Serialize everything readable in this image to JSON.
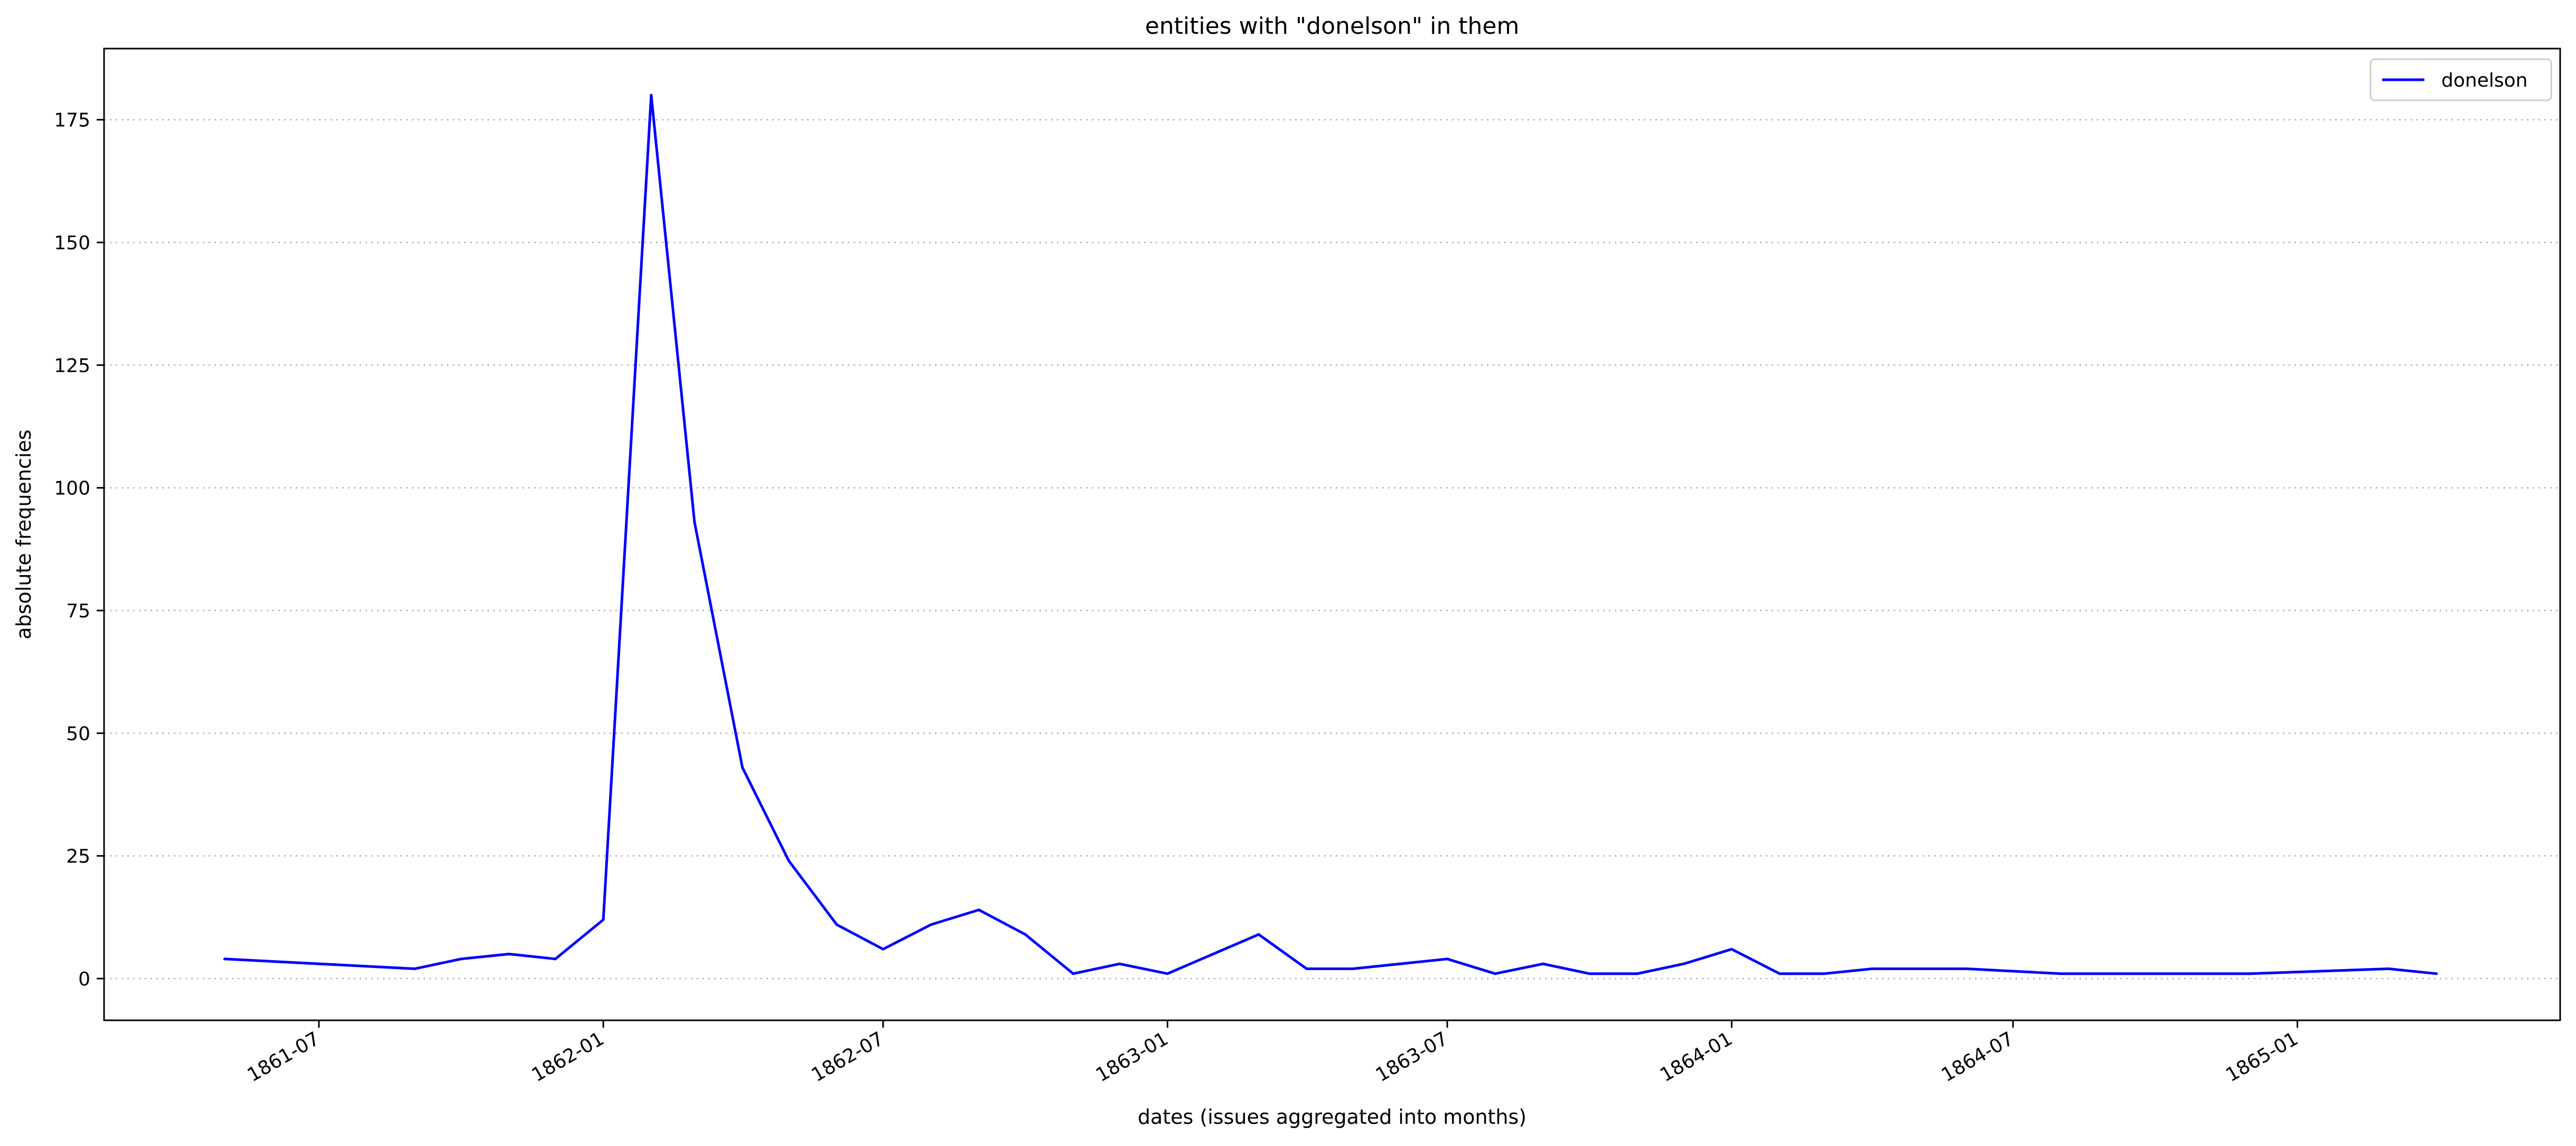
{
  "chart_data": {
    "type": "line",
    "title": "entities with \"donelson\" in them",
    "xlabel": "dates (issues aggregated into months)",
    "ylabel": "absolute frequencies",
    "x_type": "date",
    "xlim": [
      "1861-02-12",
      "1865-06-20"
    ],
    "ylim": [
      -8.5,
      189.5
    ],
    "grid": {
      "axis": "y",
      "style": "dotted"
    },
    "legend": {
      "position": "top-right"
    },
    "x_ticks": [
      "1861-07",
      "1862-01",
      "1862-07",
      "1863-01",
      "1863-07",
      "1864-01",
      "1864-07",
      "1865-01"
    ],
    "y_ticks": [
      0,
      25,
      50,
      75,
      100,
      125,
      150,
      175
    ],
    "series": [
      {
        "name": "donelson",
        "color": "#0000ff",
        "points": [
          [
            "1861-05",
            4
          ],
          [
            "1861-09",
            2
          ],
          [
            "1861-10",
            4
          ],
          [
            "1861-11",
            5
          ],
          [
            "1861-12",
            4
          ],
          [
            "1862-01",
            12
          ],
          [
            "1862-02",
            180
          ],
          [
            "1862-03",
            93
          ],
          [
            "1862-04",
            43
          ],
          [
            "1862-05",
            24
          ],
          [
            "1862-06",
            11
          ],
          [
            "1862-07",
            6
          ],
          [
            "1862-08",
            11
          ],
          [
            "1862-09",
            14
          ],
          [
            "1862-10",
            9
          ],
          [
            "1862-11",
            1
          ],
          [
            "1862-12",
            3
          ],
          [
            "1863-01",
            1
          ],
          [
            "1863-03",
            9
          ],
          [
            "1863-04",
            2
          ],
          [
            "1863-05",
            2
          ],
          [
            "1863-07",
            4
          ],
          [
            "1863-08",
            1
          ],
          [
            "1863-09",
            3
          ],
          [
            "1863-10",
            1
          ],
          [
            "1863-11",
            1
          ],
          [
            "1863-12",
            3
          ],
          [
            "1864-01",
            6
          ],
          [
            "1864-02",
            1
          ],
          [
            "1864-03",
            1
          ],
          [
            "1864-04",
            2
          ],
          [
            "1864-06",
            2
          ],
          [
            "1864-08",
            1
          ],
          [
            "1864-12",
            1
          ],
          [
            "1865-03",
            2
          ],
          [
            "1865-04",
            1
          ]
        ]
      }
    ]
  }
}
